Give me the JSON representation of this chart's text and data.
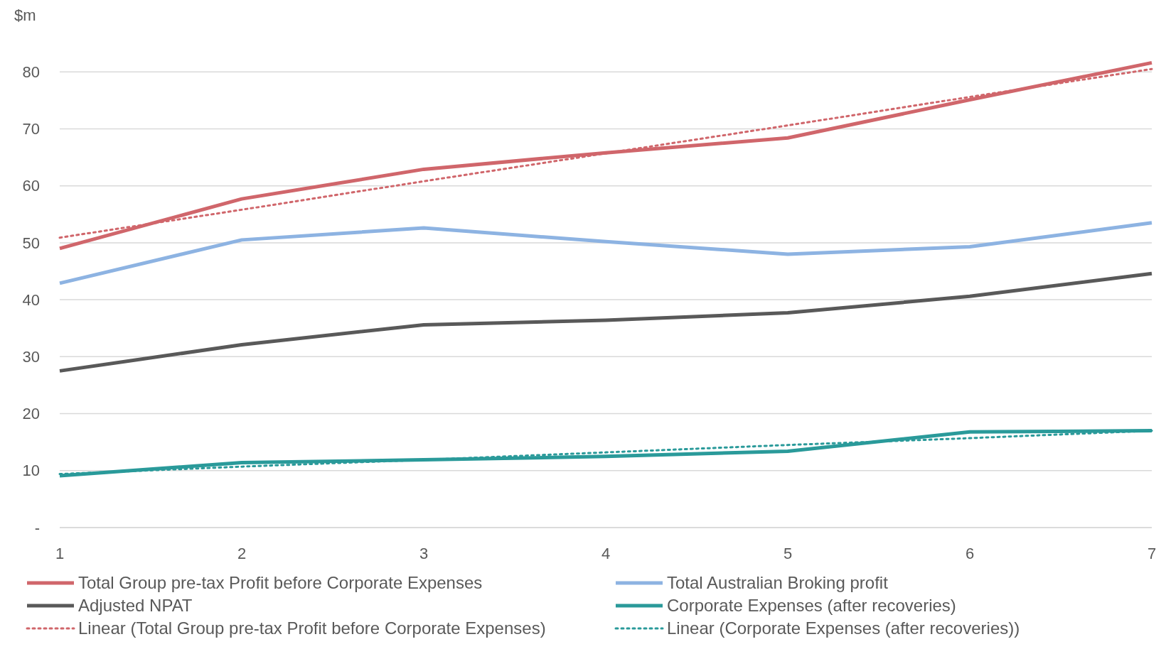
{
  "chart_data": {
    "type": "line",
    "x": [
      1,
      2,
      3,
      4,
      5,
      6,
      7
    ],
    "xlim": [
      1,
      7
    ],
    "xticks": [
      1,
      2,
      3,
      4,
      5,
      6,
      7
    ],
    "ylim": [
      0,
      90
    ],
    "yticks": [
      {
        "value": 0,
        "label": "-"
      },
      10,
      20,
      30,
      40,
      50,
      60,
      70,
      80,
      {
        "value": 90,
        "label": "$m"
      }
    ],
    "grid": "y",
    "legend": "bottom",
    "marker": "none",
    "series": [
      {
        "name": "Total Group pre-tax Profit before Corporate Expenses",
        "color": "#d0666b",
        "values": [
          49.0,
          57.7,
          62.9,
          65.8,
          68.4,
          75.1,
          81.6
        ]
      },
      {
        "name": "Total Australian Broking profit",
        "color": "#8db3e2",
        "values": [
          42.9,
          50.5,
          52.6,
          50.2,
          48.0,
          49.3,
          53.5
        ]
      },
      {
        "name": "Adjusted NPAT",
        "color": "#595959",
        "values": [
          27.5,
          32.1,
          35.6,
          36.4,
          37.7,
          40.6,
          44.6
        ]
      },
      {
        "name": "Corporate Expenses (after recoveries)",
        "color": "#2a9a9a",
        "values": [
          9.1,
          11.4,
          11.9,
          12.5,
          13.4,
          16.8,
          17.0
        ]
      },
      {
        "name": "Linear (Total Group pre-tax Profit before Corporate Expenses)",
        "color": "#d0666b",
        "line_style": "dotted",
        "values": [
          50.9,
          55.8,
          60.8,
          65.7,
          70.6,
          75.6,
          80.5
        ]
      },
      {
        "name": "Linear (Corporate Expenses (after recoveries))",
        "color": "#2a9a9a",
        "line_style": "dotted",
        "values": [
          9.4,
          10.7,
          11.9,
          13.2,
          14.5,
          15.7,
          17.0
        ]
      }
    ]
  }
}
